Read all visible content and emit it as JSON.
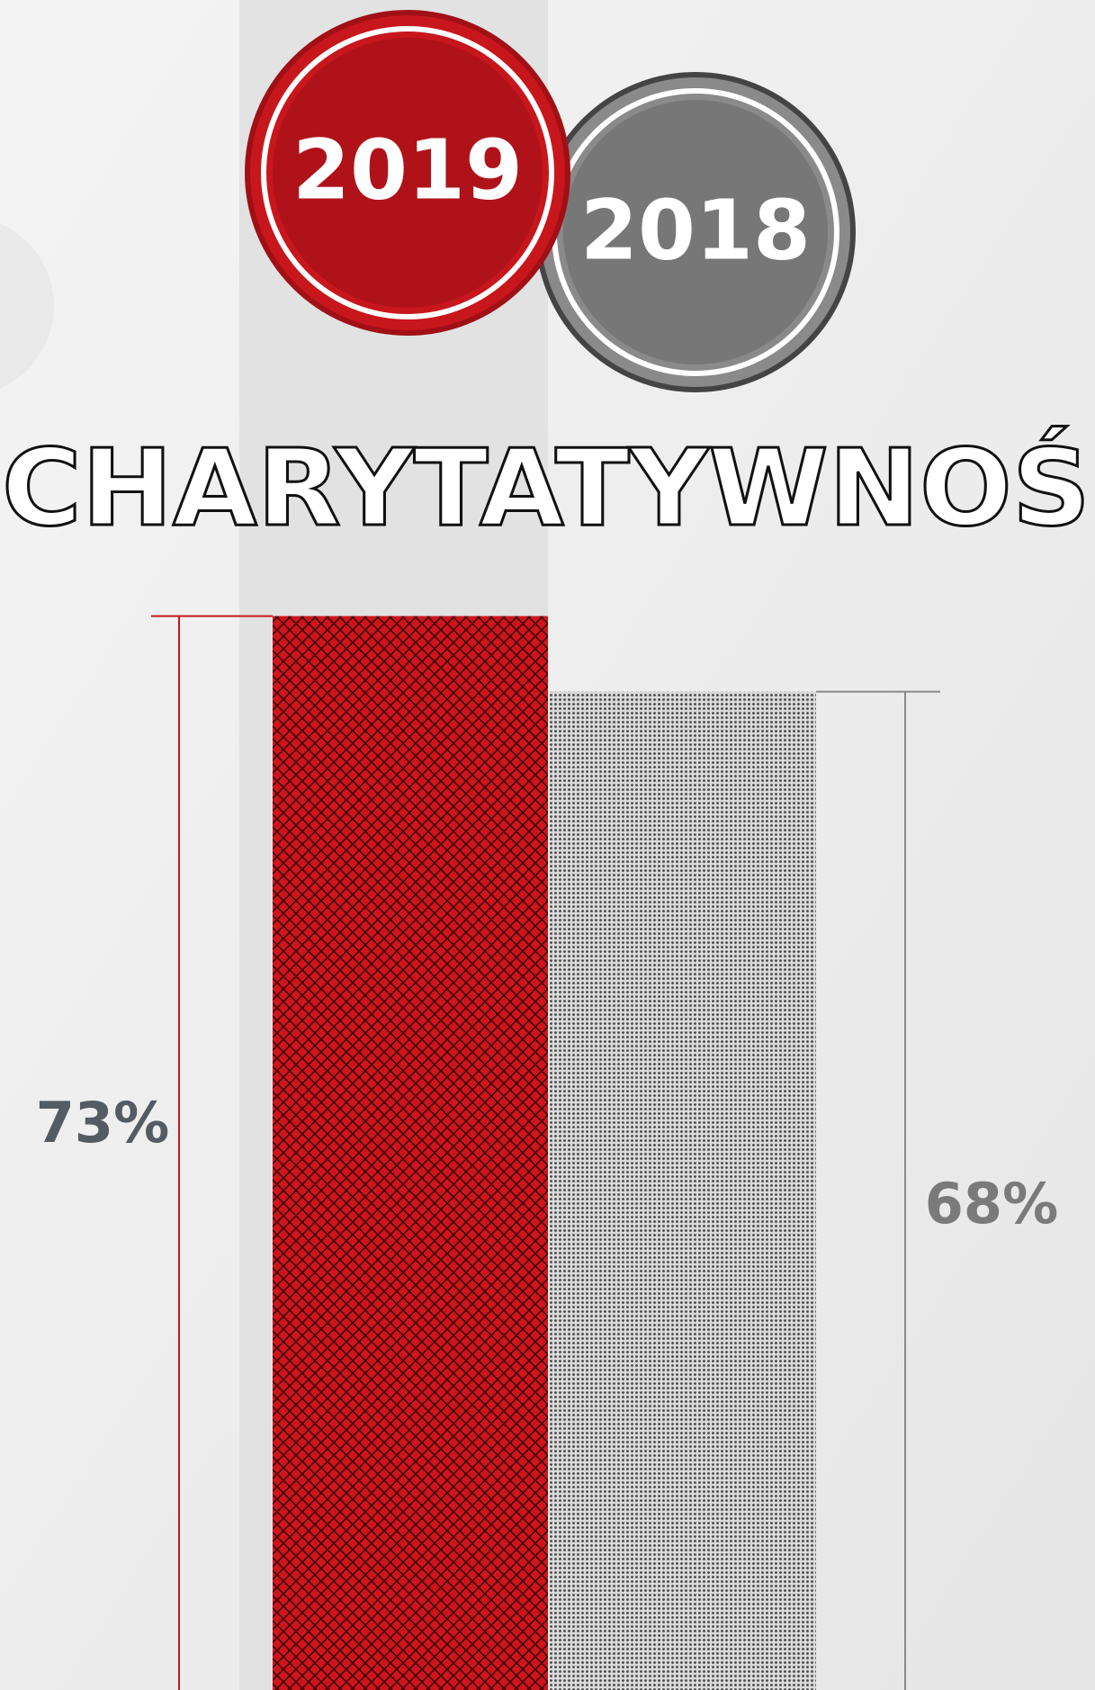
{
  "chart_data": {
    "type": "bar",
    "title": "CHARYTATYWNOŚ",
    "categories": [
      "2019",
      "2018"
    ],
    "values": [
      73,
      68
    ],
    "value_labels": [
      "73%",
      "68%"
    ],
    "colors": [
      "#c8161d",
      "#8a8a8a"
    ],
    "ylim": [
      0,
      100
    ]
  }
}
